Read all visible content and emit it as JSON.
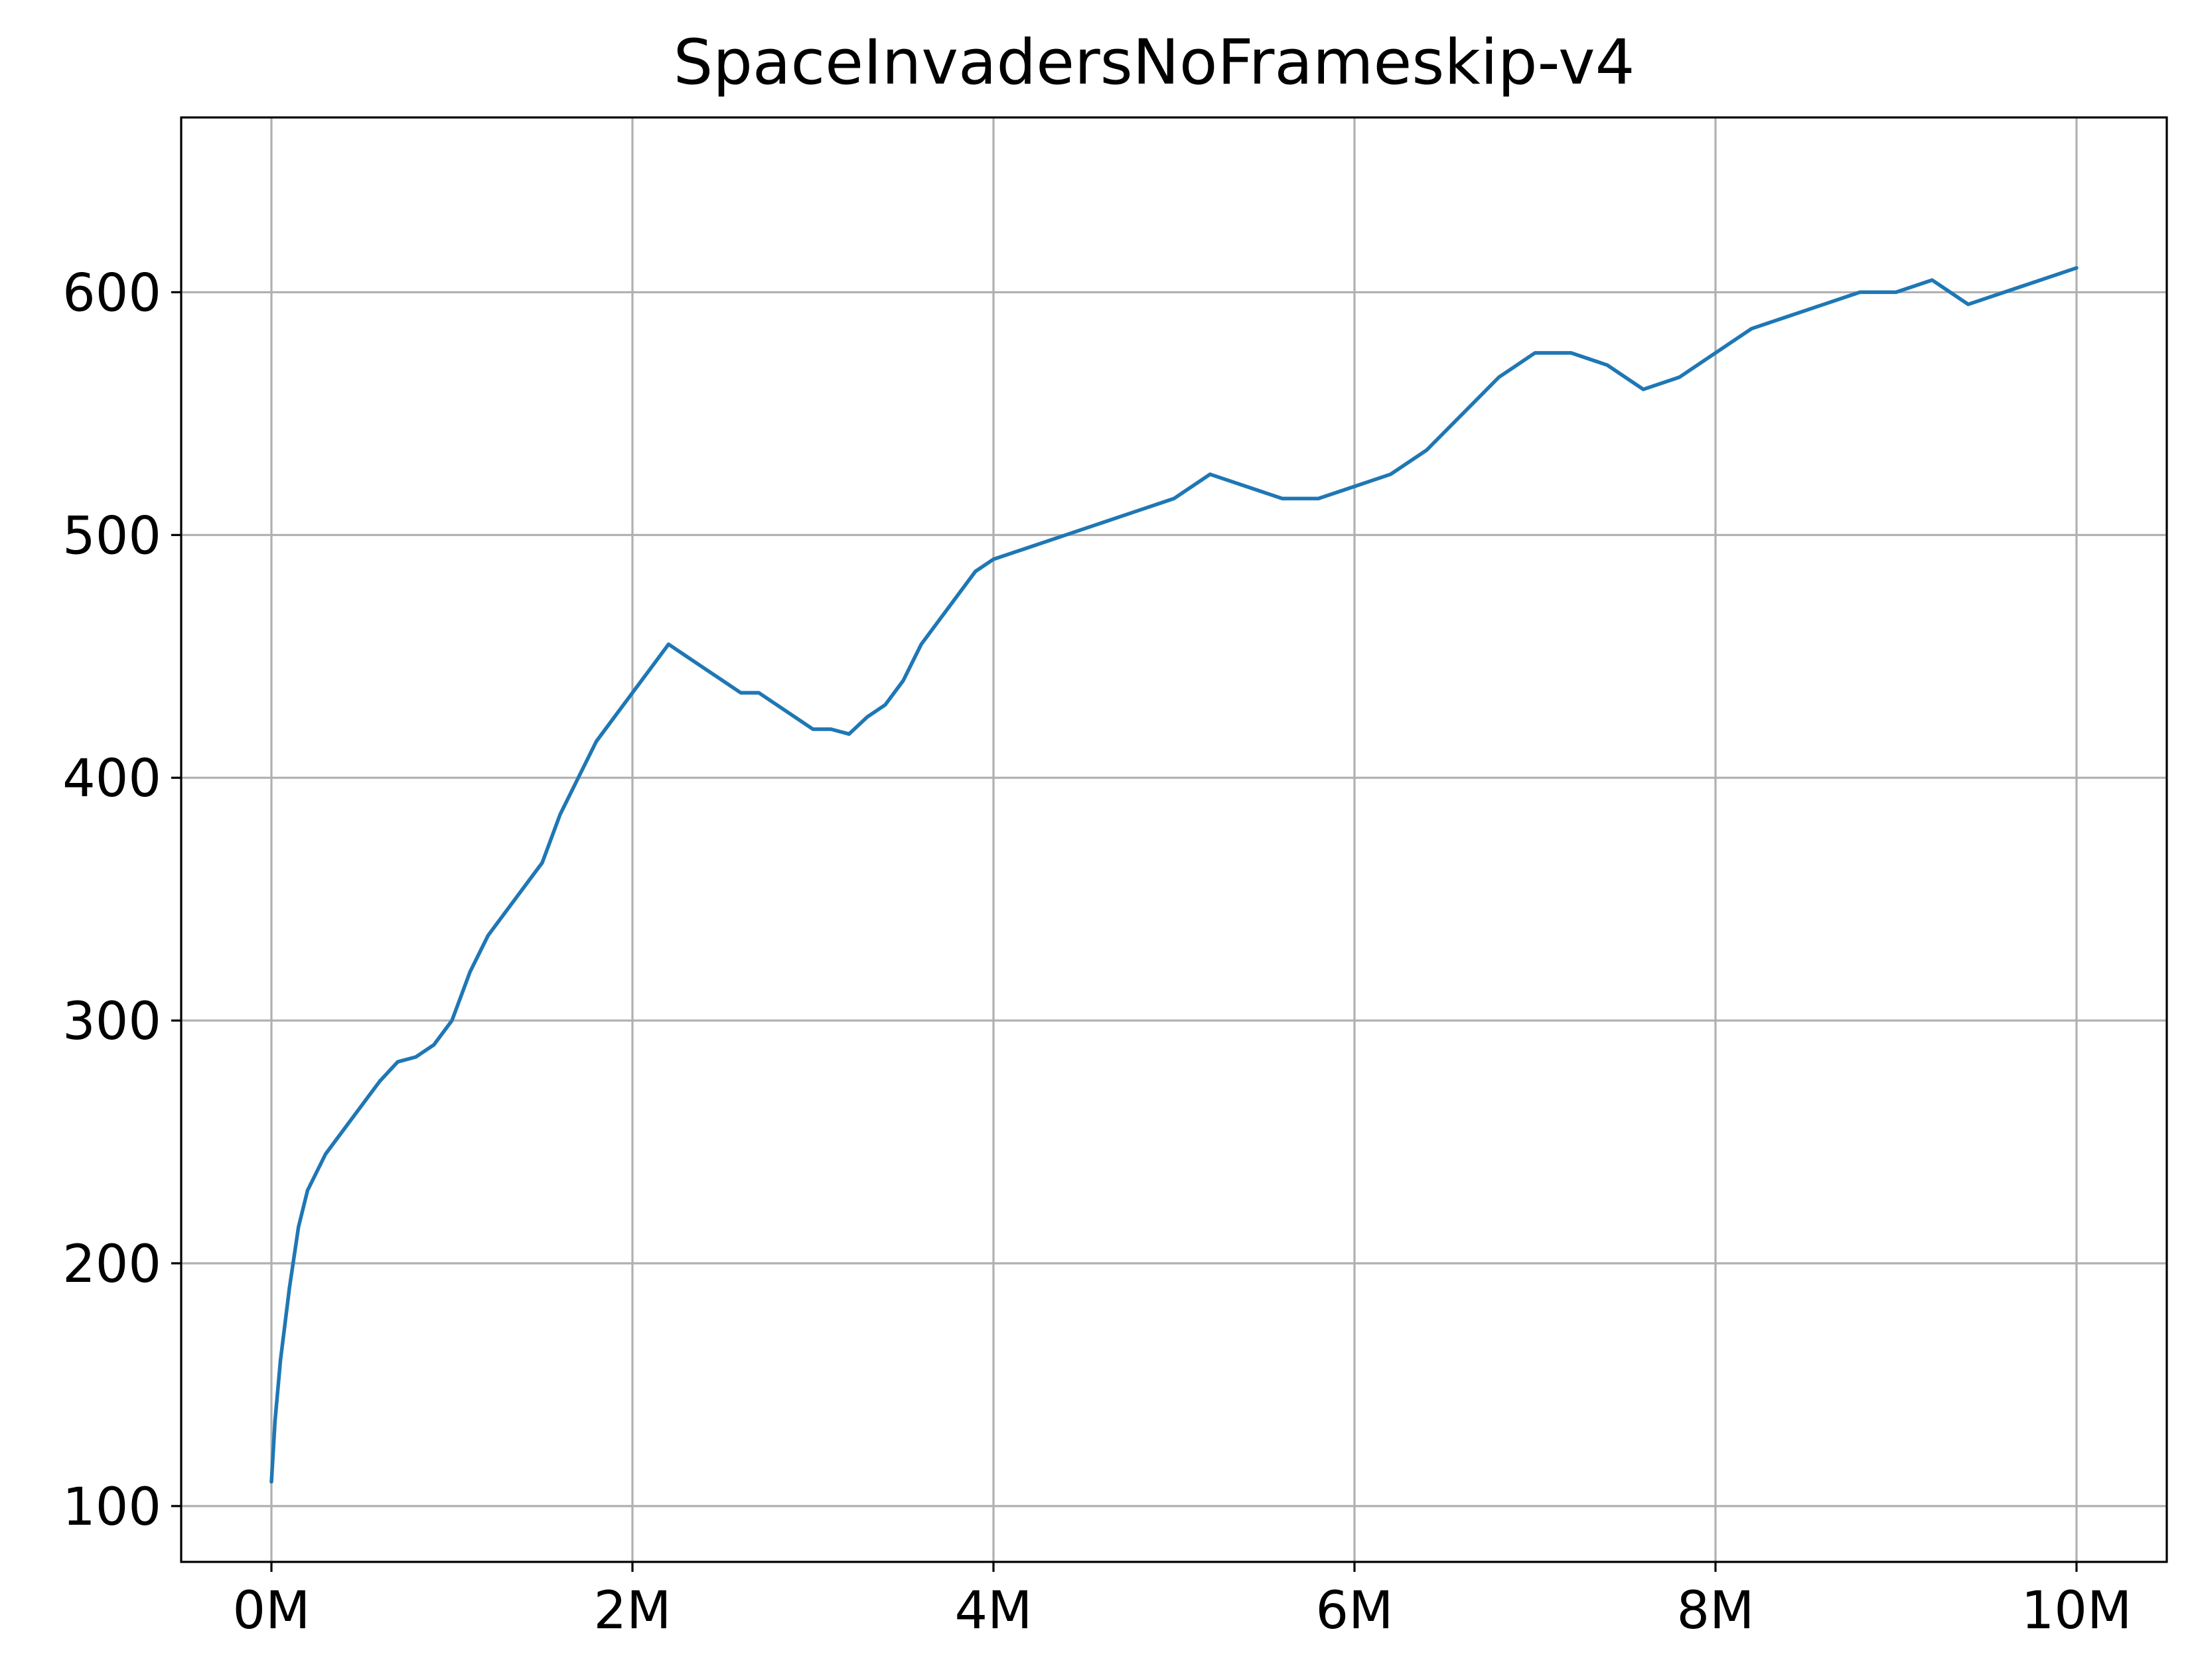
{
  "chart_data": {
    "type": "line",
    "title": "SpaceInvadersNoFrameskip-v4",
    "xlabel": "",
    "ylabel": "",
    "xlim": [
      -0.5,
      10.5
    ],
    "ylim": [
      77,
      672
    ],
    "x_ticks": [
      0,
      2,
      4,
      6,
      8,
      10
    ],
    "x_tick_labels": [
      "0M",
      "2M",
      "4M",
      "6M",
      "8M",
      "10M"
    ],
    "y_ticks": [
      100,
      200,
      300,
      400,
      500,
      600
    ],
    "y_tick_labels": [
      "100",
      "200",
      "300",
      "400",
      "500",
      "600"
    ],
    "grid": true,
    "legend": "none",
    "color": "#1f77b4",
    "series": [
      {
        "x": [
          0,
          0.02,
          0.05,
          0.1,
          0.15,
          0.2,
          0.3,
          0.4,
          0.5,
          0.6,
          0.7,
          0.8,
          0.9,
          1.0,
          1.1,
          1.2,
          1.3,
          1.4,
          1.5,
          1.6,
          1.7,
          1.8,
          1.9,
          2.0,
          2.1,
          2.2,
          2.3,
          2.4,
          2.5,
          2.6,
          2.7,
          2.8,
          2.9,
          3.0,
          3.1,
          3.2,
          3.3,
          3.4,
          3.5,
          3.6,
          3.7,
          3.8,
          3.9,
          4.0,
          4.2,
          4.4,
          4.6,
          4.8,
          5.0,
          5.2,
          5.4,
          5.6,
          5.8,
          6.0,
          6.2,
          6.4,
          6.6,
          6.8,
          7.0,
          7.2,
          7.4,
          7.6,
          7.8,
          8.0,
          8.2,
          8.4,
          8.6,
          8.8,
          9.0,
          9.2,
          9.4,
          9.6,
          9.8,
          10.0
        ],
        "values": [
          110,
          135,
          160,
          190,
          215,
          230,
          245,
          255,
          265,
          275,
          283,
          285,
          290,
          300,
          320,
          335,
          345,
          355,
          365,
          385,
          400,
          415,
          425,
          435,
          445,
          455,
          450,
          445,
          440,
          435,
          435,
          430,
          425,
          420,
          420,
          418,
          425,
          430,
          440,
          455,
          465,
          475,
          485,
          490,
          495,
          500,
          505,
          510,
          515,
          525,
          520,
          515,
          515,
          520,
          525,
          535,
          550,
          565,
          575,
          575,
          570,
          560,
          565,
          575,
          585,
          590,
          595,
          600,
          600,
          605,
          595,
          600,
          605,
          610
        ]
      }
    ]
  }
}
